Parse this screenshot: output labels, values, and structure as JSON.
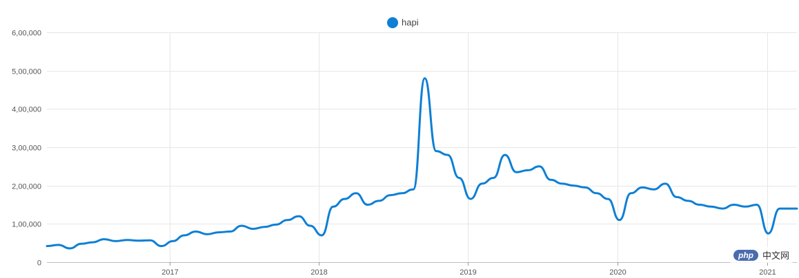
{
  "chart_data": {
    "type": "line",
    "title": "",
    "xlabel": "",
    "ylabel": "",
    "ylim": [
      0,
      600000
    ],
    "xlim": [
      "2016-03-07",
      "2021-03-15"
    ],
    "y_ticks": [
      {
        "value": 0,
        "label": "0"
      },
      {
        "value": 100000,
        "label": "1,00,000"
      },
      {
        "value": 200000,
        "label": "2,00,000"
      },
      {
        "value": 300000,
        "label": "3,00,000"
      },
      {
        "value": 400000,
        "label": "4,00,000"
      },
      {
        "value": 500000,
        "label": "5,00,000"
      },
      {
        "value": 600000,
        "label": "6,00,000"
      }
    ],
    "x_ticks": [
      {
        "value": "2017-01-01",
        "label": "2017"
      },
      {
        "value": "2018-01-01",
        "label": "2018"
      },
      {
        "value": "2019-01-01",
        "label": "2019"
      },
      {
        "value": "2020-01-01",
        "label": "2020"
      },
      {
        "value": "2021-01-01",
        "label": "2021"
      }
    ],
    "grid": true,
    "legend": {
      "position": "top-center"
    },
    "series": [
      {
        "name": "hapi",
        "color": "#0e7fd4",
        "points": [
          [
            "2016-03-07",
            42000
          ],
          [
            "2016-04-04",
            45000
          ],
          [
            "2016-05-02",
            36000
          ],
          [
            "2016-05-30",
            48000
          ],
          [
            "2016-06-27",
            52000
          ],
          [
            "2016-07-25",
            60000
          ],
          [
            "2016-08-22",
            55000
          ],
          [
            "2016-09-19",
            58000
          ],
          [
            "2016-10-17",
            56000
          ],
          [
            "2016-11-14",
            57000
          ],
          [
            "2016-12-12",
            42000
          ],
          [
            "2017-01-09",
            55000
          ],
          [
            "2017-02-06",
            70000
          ],
          [
            "2017-03-06",
            80000
          ],
          [
            "2017-04-03",
            73000
          ],
          [
            "2017-05-01",
            78000
          ],
          [
            "2017-05-29",
            80000
          ],
          [
            "2017-06-26",
            95000
          ],
          [
            "2017-07-24",
            87000
          ],
          [
            "2017-08-21",
            92000
          ],
          [
            "2017-09-18",
            98000
          ],
          [
            "2017-10-16",
            110000
          ],
          [
            "2017-11-13",
            120000
          ],
          [
            "2017-12-11",
            95000
          ],
          [
            "2018-01-08",
            70000
          ],
          [
            "2018-02-05",
            145000
          ],
          [
            "2018-03-05",
            165000
          ],
          [
            "2018-04-02",
            180000
          ],
          [
            "2018-04-30",
            150000
          ],
          [
            "2018-05-28",
            160000
          ],
          [
            "2018-06-25",
            175000
          ],
          [
            "2018-07-23",
            180000
          ],
          [
            "2018-08-20",
            190000
          ],
          [
            "2018-09-17",
            480000
          ],
          [
            "2018-10-15",
            290000
          ],
          [
            "2018-11-12",
            280000
          ],
          [
            "2018-12-10",
            220000
          ],
          [
            "2019-01-07",
            165000
          ],
          [
            "2019-02-04",
            205000
          ],
          [
            "2019-03-04",
            220000
          ],
          [
            "2019-04-01",
            280000
          ],
          [
            "2019-04-29",
            235000
          ],
          [
            "2019-05-27",
            240000
          ],
          [
            "2019-06-24",
            250000
          ],
          [
            "2019-07-22",
            215000
          ],
          [
            "2019-08-19",
            205000
          ],
          [
            "2019-09-16",
            200000
          ],
          [
            "2019-10-14",
            195000
          ],
          [
            "2019-11-11",
            180000
          ],
          [
            "2019-12-09",
            165000
          ],
          [
            "2020-01-06",
            110000
          ],
          [
            "2020-02-03",
            180000
          ],
          [
            "2020-03-02",
            195000
          ],
          [
            "2020-03-30",
            190000
          ],
          [
            "2020-04-27",
            205000
          ],
          [
            "2020-05-25",
            170000
          ],
          [
            "2020-06-22",
            160000
          ],
          [
            "2020-07-20",
            150000
          ],
          [
            "2020-08-17",
            145000
          ],
          [
            "2020-09-14",
            140000
          ],
          [
            "2020-10-12",
            150000
          ],
          [
            "2020-11-09",
            145000
          ],
          [
            "2020-12-07",
            150000
          ],
          [
            "2021-01-04",
            75000
          ],
          [
            "2021-02-01",
            140000
          ],
          [
            "2021-03-01",
            140000
          ],
          [
            "2021-03-15",
            140000
          ]
        ]
      }
    ]
  },
  "watermark": {
    "logo": "php",
    "text": "中文网"
  }
}
